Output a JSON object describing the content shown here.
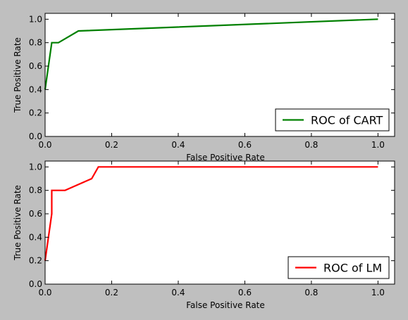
{
  "figure": {
    "background": "#bfbfbf"
  },
  "chart_data": [
    {
      "type": "line",
      "xlabel": "False Positive Rate",
      "ylabel": "True Positive Rate",
      "xlim": [
        0.0,
        1.05
      ],
      "ylim": [
        0.0,
        1.05
      ],
      "xticks": [
        "0.0",
        "0.2",
        "0.4",
        "0.6",
        "0.8",
        "1.0"
      ],
      "yticks": [
        "0.0",
        "0.2",
        "0.4",
        "0.6",
        "0.8",
        "1.0"
      ],
      "xtick_values": [
        0,
        0.2,
        0.4,
        0.6,
        0.8,
        1.0
      ],
      "ytick_values": [
        0,
        0.2,
        0.4,
        0.6,
        0.8,
        1.0
      ],
      "grid": false,
      "legend_position": "lower-right",
      "series": [
        {
          "name": "ROC of CART",
          "color": "#008000",
          "x": [
            0.0,
            0.02,
            0.04,
            0.1,
            1.0
          ],
          "y": [
            0.4,
            0.8,
            0.8,
            0.9,
            1.0
          ]
        }
      ]
    },
    {
      "type": "line",
      "xlabel": "False Positive Rate",
      "ylabel": "True Positive Rate",
      "xlim": [
        0.0,
        1.05
      ],
      "ylim": [
        0.0,
        1.05
      ],
      "xticks": [
        "0.0",
        "0.2",
        "0.4",
        "0.6",
        "0.8",
        "1.0"
      ],
      "yticks": [
        "0.0",
        "0.2",
        "0.4",
        "0.6",
        "0.8",
        "1.0"
      ],
      "xtick_values": [
        0,
        0.2,
        0.4,
        0.6,
        0.8,
        1.0
      ],
      "ytick_values": [
        0,
        0.2,
        0.4,
        0.6,
        0.8,
        1.0
      ],
      "grid": false,
      "legend_position": "lower-right",
      "series": [
        {
          "name": "ROC of LM",
          "color": "#ff0000",
          "x": [
            0.0,
            0.02,
            0.02,
            0.02,
            0.06,
            0.14,
            0.16,
            1.0
          ],
          "y": [
            0.2,
            0.6,
            0.62,
            0.8,
            0.8,
            0.9,
            1.0,
            1.0
          ]
        }
      ]
    }
  ]
}
